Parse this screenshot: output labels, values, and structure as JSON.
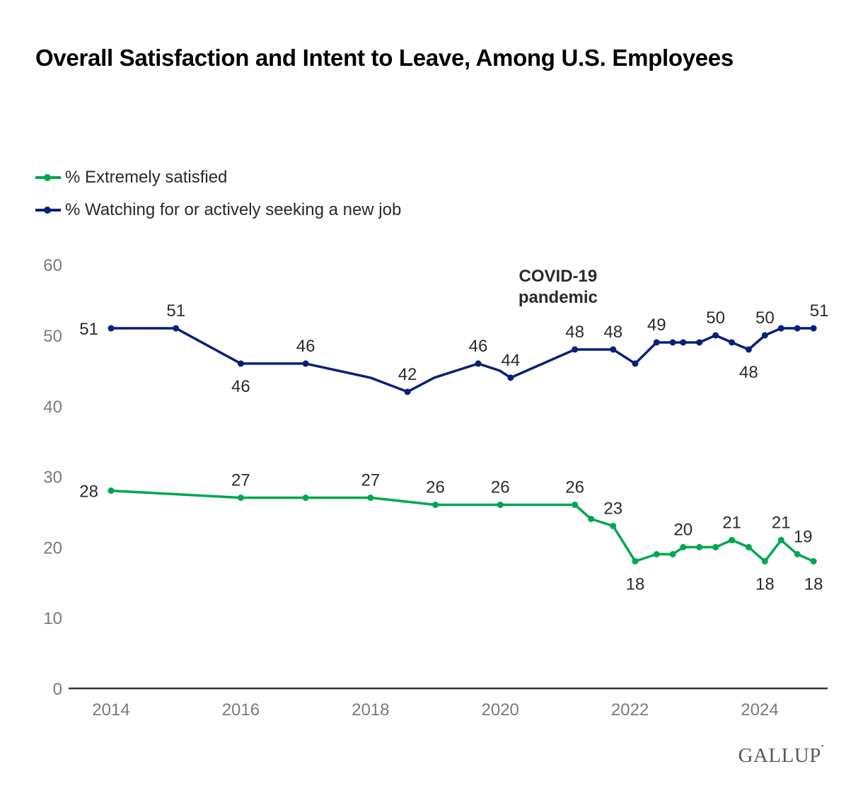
{
  "chart_data": {
    "type": "line",
    "title": "Overall Satisfaction and Intent to Leave, Among U.S. Employees",
    "xlabel": "",
    "ylabel": "",
    "xlim": [
      2014,
      2025
    ],
    "ylim": [
      0,
      60
    ],
    "x_ticks": [
      2014,
      2016,
      2018,
      2020,
      2022,
      2024
    ],
    "x_tick_labels": [
      "2014",
      "2016",
      "2018",
      "2020",
      "2022",
      "2024"
    ],
    "y_ticks": [
      0,
      10,
      20,
      30,
      40,
      50,
      60
    ],
    "y_tick_labels": [
      "0",
      "10",
      "20",
      "30",
      "40",
      "50",
      "60"
    ],
    "grid": false,
    "legend_position": "top-left",
    "annotations": [
      {
        "text_lines": [
          "COVID-19",
          "pandemic"
        ],
        "x": 2020.4,
        "y": 59.8
      }
    ],
    "series": [
      {
        "name": "% Extremely satisfied",
        "color": "#00a651",
        "points": [
          {
            "x": 2014.0,
            "y": 28,
            "label": "28",
            "label_pos": "left",
            "marker": true
          },
          {
            "x": 2016.0,
            "y": 27,
            "label": "27",
            "label_pos": "above",
            "marker": true
          },
          {
            "x": 2017.0,
            "y": 27,
            "label": null,
            "marker": true
          },
          {
            "x": 2018.0,
            "y": 27,
            "label": "27",
            "label_pos": "above",
            "marker": true
          },
          {
            "x": 2019.0,
            "y": 26,
            "label": "26",
            "label_pos": "above",
            "marker": true
          },
          {
            "x": 2020.0,
            "y": 26,
            "label": "26",
            "label_pos": "above",
            "marker": true
          },
          {
            "x": 2021.15,
            "y": 26,
            "label": "26",
            "label_pos": "above",
            "marker": true
          },
          {
            "x": 2021.4,
            "y": 24,
            "label": null,
            "marker": true
          },
          {
            "x": 2021.74,
            "y": 23,
            "label": "23",
            "label_pos": "above",
            "marker": true
          },
          {
            "x": 2022.08,
            "y": 18,
            "label": "18",
            "label_pos": "below",
            "marker": true
          },
          {
            "x": 2022.41,
            "y": 19,
            "label": null,
            "marker": true
          },
          {
            "x": 2022.66,
            "y": 19,
            "label": null,
            "marker": true
          },
          {
            "x": 2022.82,
            "y": 20,
            "label": "20",
            "label_pos": "above",
            "marker": true
          },
          {
            "x": 2023.07,
            "y": 20,
            "label": null,
            "marker": true
          },
          {
            "x": 2023.32,
            "y": 20,
            "label": null,
            "marker": true
          },
          {
            "x": 2023.57,
            "y": 21,
            "label": "21",
            "label_pos": "above",
            "marker": true
          },
          {
            "x": 2023.83,
            "y": 20,
            "label": null,
            "marker": true
          },
          {
            "x": 2024.08,
            "y": 18,
            "label": "18",
            "label_pos": "below",
            "marker": true
          },
          {
            "x": 2024.33,
            "y": 21,
            "label": "21",
            "label_pos": "above",
            "marker": true
          },
          {
            "x": 2024.58,
            "y": 19,
            "label": "19",
            "label_pos": "above-right",
            "marker": true
          },
          {
            "x": 2024.83,
            "y": 18,
            "label": "18",
            "label_pos": "below",
            "marker": true
          }
        ]
      },
      {
        "name": "% Watching for or actively seeking a new job",
        "color": "#0a1f7a",
        "points": [
          {
            "x": 2014.0,
            "y": 51,
            "label": "51",
            "label_pos": "left",
            "marker": true
          },
          {
            "x": 2015.0,
            "y": 51,
            "label": "51",
            "label_pos": "above",
            "marker": true
          },
          {
            "x": 2016.0,
            "y": 46,
            "label": "46",
            "label_pos": "below",
            "marker": true
          },
          {
            "x": 2017.0,
            "y": 46,
            "label": "46",
            "label_pos": "above",
            "marker": true
          },
          {
            "x": 2018.0,
            "y": 44,
            "label": null,
            "marker": false
          },
          {
            "x": 2018.57,
            "y": 42,
            "label": "42",
            "label_pos": "above",
            "marker": true
          },
          {
            "x": 2018.98,
            "y": 44,
            "label": null,
            "marker": false
          },
          {
            "x": 2019.66,
            "y": 46,
            "label": "46",
            "label_pos": "above",
            "marker": true
          },
          {
            "x": 2019.99,
            "y": 45,
            "label": null,
            "marker": false
          },
          {
            "x": 2020.16,
            "y": 44,
            "label": "44",
            "label_pos": "above",
            "marker": true
          },
          {
            "x": 2021.15,
            "y": 48,
            "label": "48",
            "label_pos": "above",
            "marker": true
          },
          {
            "x": 2021.74,
            "y": 48,
            "label": "48",
            "label_pos": "above",
            "marker": true
          },
          {
            "x": 2022.08,
            "y": 46,
            "label": null,
            "marker": true
          },
          {
            "x": 2022.41,
            "y": 49,
            "label": "49",
            "label_pos": "above",
            "marker": true
          },
          {
            "x": 2022.66,
            "y": 49,
            "label": null,
            "marker": true
          },
          {
            "x": 2022.82,
            "y": 49,
            "label": null,
            "marker": true
          },
          {
            "x": 2023.07,
            "y": 49,
            "label": null,
            "marker": true
          },
          {
            "x": 2023.32,
            "y": 50,
            "label": "50",
            "label_pos": "above",
            "marker": true
          },
          {
            "x": 2023.57,
            "y": 49,
            "label": null,
            "marker": true
          },
          {
            "x": 2023.83,
            "y": 48,
            "label": "48",
            "label_pos": "below",
            "marker": true
          },
          {
            "x": 2024.08,
            "y": 50,
            "label": "50",
            "label_pos": "above",
            "marker": true
          },
          {
            "x": 2024.33,
            "y": 51,
            "label": null,
            "marker": true
          },
          {
            "x": 2024.58,
            "y": 51,
            "label": null,
            "marker": true
          },
          {
            "x": 2024.83,
            "y": 51,
            "label": "51",
            "label_pos": "above-right",
            "marker": true
          }
        ]
      }
    ]
  },
  "legend": {
    "items": [
      {
        "label": "% Extremely satisfied",
        "color": "#00a651"
      },
      {
        "label": "% Watching for or actively seeking a new job",
        "color": "#0a1f7a"
      }
    ]
  },
  "branding": {
    "logo_text": "GALLUP"
  }
}
